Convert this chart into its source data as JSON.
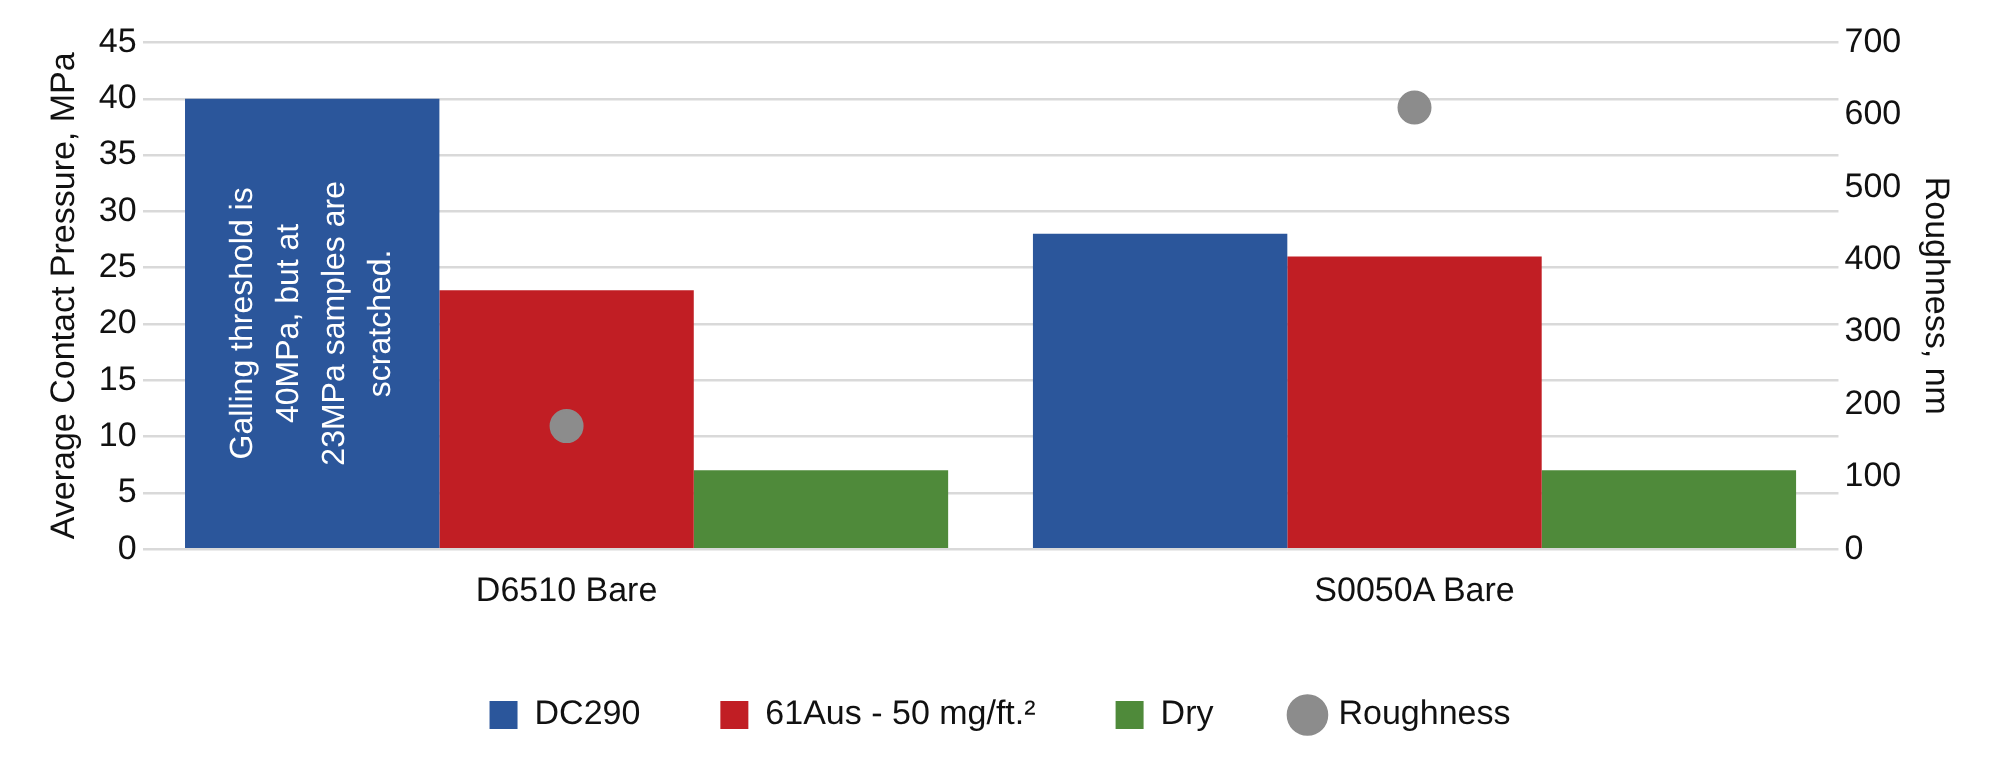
{
  "chart_data": {
    "type": "bar",
    "categories": [
      "D6510 Bare",
      "S0050A Bare"
    ],
    "series": [
      {
        "name": "DC290",
        "color": "#2b569b",
        "values": [
          40,
          28
        ]
      },
      {
        "name": "61Aus - 50 mg/ft.²",
        "color": "#c11e24",
        "values": [
          23,
          26
        ]
      },
      {
        "name": "Dry",
        "color": "#4f8a3a",
        "values": [
          7,
          7
        ]
      },
      {
        "name": "Roughness",
        "type": "scatter",
        "axis": "y2",
        "color": "#8c8c8c",
        "x": [
          "D6510 Bare",
          "S0050A Bare"
        ],
        "values": [
          170,
          610
        ]
      }
    ],
    "ylabel": "Average Contact Pressure, MPa",
    "y2label": "Roughness, nm",
    "ylim": [
      0,
      45
    ],
    "yticks": [
      0,
      5,
      10,
      15,
      20,
      25,
      30,
      35,
      40,
      45
    ],
    "y2lim": [
      0,
      700
    ],
    "y2ticks": [
      0,
      100,
      200,
      300,
      400,
      500,
      600,
      700
    ],
    "annotations": [
      "Galling threshold is\n40MPa, but at\n23MPa samples are\nscratched."
    ],
    "grid": "y",
    "legend": "bottom",
    "marker": "circle"
  }
}
